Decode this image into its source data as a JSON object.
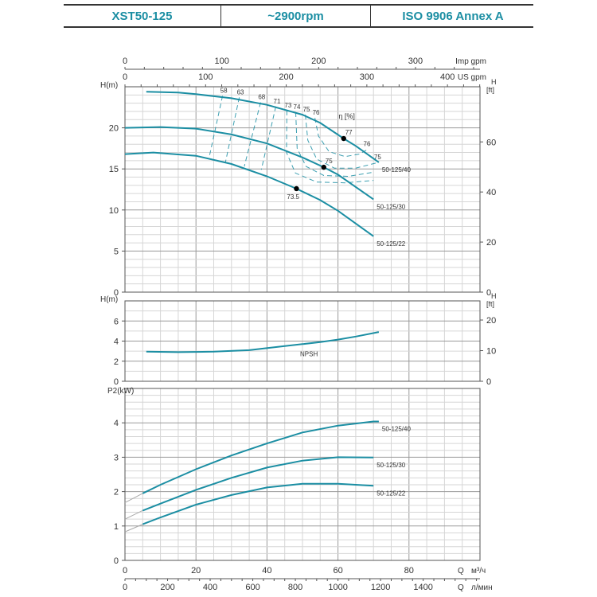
{
  "header": {
    "model": "XST50-125",
    "speed": "~2900rpm",
    "standard": "ISO 9906   Annex A"
  },
  "colors": {
    "curve": "#1b8ea3",
    "grid_minor": "#d6d6d6",
    "grid_major": "#9a9a9a",
    "header_text": "#1b8ea3"
  },
  "top_axes": [
    {
      "unit": "Imp gpm",
      "ticks": [
        "0",
        "100",
        "200",
        "300"
      ],
      "values_m3h": [
        0,
        27.28,
        54.55,
        81.83
      ]
    },
    {
      "unit": "US gpm",
      "ticks": [
        "0",
        "100",
        "200",
        "300",
        "400"
      ],
      "values_m3h": [
        0,
        22.71,
        45.42,
        68.14,
        90.85
      ]
    }
  ],
  "bottom_axes": [
    {
      "symbol": "Q",
      "unit": "м³/ч",
      "ticks": [
        "0",
        "20",
        "40",
        "60",
        "80"
      ],
      "values_m3h": [
        0,
        20,
        40,
        60,
        80
      ]
    },
    {
      "symbol": "Q",
      "unit": "л/мин",
      "ticks": [
        "0",
        "200",
        "400",
        "600",
        "800",
        "1000",
        "1200",
        "1400"
      ],
      "values_m3h": [
        0,
        12,
        24,
        36,
        48,
        60,
        72,
        84
      ]
    }
  ],
  "chart_data": [
    {
      "type": "line",
      "panel": "head",
      "ylabel": "H(m)",
      "right_ylabel": [
        "H",
        "[ft]"
      ],
      "xlim": [
        0,
        100
      ],
      "ylim": [
        0,
        25
      ],
      "yticks": [
        "0",
        "5",
        "10",
        "15",
        "20"
      ],
      "right_ticks": [
        "0",
        "20",
        "40",
        "60"
      ],
      "grid": true,
      "series": [
        {
          "name": "50-125/40",
          "x": [
            6,
            15,
            20,
            30,
            40,
            50,
            55,
            61.6,
            65,
            71.5
          ],
          "y": [
            24.4,
            24.3,
            24.1,
            23.6,
            22.8,
            21.6,
            20.6,
            18.7,
            17.8,
            15.8
          ]
        },
        {
          "name": "50-125/30",
          "x": [
            0,
            10,
            20,
            30,
            40,
            50,
            56,
            60,
            70
          ],
          "y": [
            20.0,
            20.1,
            19.9,
            19.2,
            18.1,
            16.4,
            15.2,
            14.3,
            11.3
          ]
        },
        {
          "name": "50-125/22",
          "x": [
            0,
            8,
            20,
            30,
            40,
            48.3,
            55,
            60,
            70
          ],
          "y": [
            16.8,
            17.0,
            16.6,
            15.6,
            14.1,
            12.6,
            11.2,
            9.9,
            6.8
          ]
        }
      ],
      "efficiency": {
        "label": "η [%]",
        "iso_curves": [
          {
            "label": "58",
            "points": [
              [
                27.5,
                23.9
              ],
              [
                23.6,
                16.2
              ]
            ]
          },
          {
            "label": "63",
            "points": [
              [
                32.2,
                23.7
              ],
              [
                28.3,
                15.8
              ]
            ]
          },
          {
            "label": "68",
            "points": [
              [
                38.2,
                23.1
              ],
              [
                33.6,
                15.3
              ]
            ]
          },
          {
            "label": "71",
            "points": [
              [
                42.5,
                22.6
              ],
              [
                38.4,
                14.9
              ]
            ]
          },
          {
            "label": "73",
            "points": [
              [
                45.6,
                22.1
              ],
              [
                45.5,
                17
              ],
              [
                48,
                14.5
              ],
              [
                54,
                13.4
              ],
              [
                62,
                13.3
              ],
              [
                70,
                13.6
              ]
            ]
          },
          {
            "label": "74",
            "points": [
              [
                48.1,
                21.9
              ],
              [
                48.5,
                17.5
              ],
              [
                51,
                15.3
              ],
              [
                56,
                14.2
              ],
              [
                63,
                14.1
              ],
              [
                70,
                14.6
              ]
            ]
          },
          {
            "label": "75",
            "points": [
              [
                50.8,
                21.6
              ],
              [
                51.5,
                18.5
              ],
              [
                54,
                16.2
              ],
              [
                59,
                15.1
              ],
              [
                65,
                15.1
              ],
              [
                71.5,
                15.8
              ]
            ]
          },
          {
            "label": "76",
            "points": [
              [
                53.5,
                21.2
              ],
              [
                54.5,
                19
              ],
              [
                57.5,
                17.1
              ],
              [
                62,
                16.5
              ],
              [
                66,
                16.8
              ],
              [
                68.5,
                17.4
              ]
            ]
          }
        ],
        "right_labels": [
          {
            "label": "76",
            "x": 68.5,
            "y": 17.4
          },
          {
            "label": "75",
            "x": 71.5,
            "y": 15.8
          }
        ],
        "best_points": [
          {
            "series": "50-125/40",
            "x": 61.6,
            "y": 18.7,
            "label": "77"
          },
          {
            "series": "50-125/30",
            "x": 56,
            "y": 15.2,
            "label": "75"
          },
          {
            "series": "50-125/22",
            "x": 48.3,
            "y": 12.6,
            "label": "73.5"
          }
        ]
      }
    },
    {
      "type": "line",
      "panel": "npsh",
      "ylabel": "H(m)",
      "right_ylabel": [
        "H",
        "[ft]"
      ],
      "xlim": [
        0,
        100
      ],
      "ylim": [
        0,
        8
      ],
      "yticks": [
        "0",
        "2",
        "4",
        "6"
      ],
      "right_ticks": [
        "0",
        "10",
        "20"
      ],
      "grid": true,
      "series": [
        {
          "name": "NPSH",
          "x": [
            6,
            15,
            25,
            35,
            45,
            50,
            55,
            60,
            65,
            71.5
          ],
          "y": [
            2.95,
            2.9,
            2.95,
            3.1,
            3.5,
            3.7,
            3.9,
            4.15,
            4.45,
            4.9
          ]
        }
      ]
    },
    {
      "type": "line",
      "panel": "power",
      "ylabel": "P2(kW)",
      "xlim": [
        0,
        100
      ],
      "ylim": [
        0,
        5
      ],
      "yticks": [
        "0",
        "1",
        "2",
        "3",
        "4"
      ],
      "grid": true,
      "series": [
        {
          "name": "50-125/40",
          "x": [
            0,
            5,
            10,
            20,
            30,
            40,
            50,
            60,
            70,
            71.5
          ],
          "y": [
            1.68,
            1.95,
            2.2,
            2.65,
            3.05,
            3.4,
            3.72,
            3.92,
            4.04,
            4.04
          ]
        },
        {
          "name": "50-125/30",
          "x": [
            0,
            5,
            10,
            20,
            30,
            40,
            50,
            60,
            70
          ],
          "y": [
            1.2,
            1.45,
            1.65,
            2.05,
            2.4,
            2.7,
            2.9,
            3.0,
            2.99
          ]
        },
        {
          "name": "50-125/22",
          "x": [
            0,
            5,
            10,
            20,
            30,
            40,
            50,
            60,
            70
          ],
          "y": [
            0.83,
            1.05,
            1.25,
            1.62,
            1.9,
            2.12,
            2.23,
            2.23,
            2.17
          ]
        }
      ]
    }
  ]
}
